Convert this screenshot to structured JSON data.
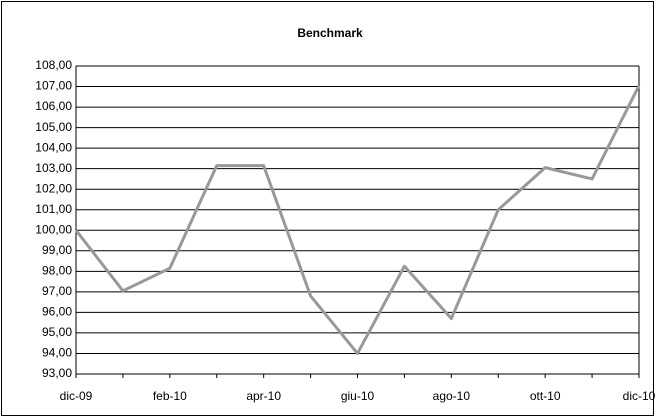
{
  "chart_data": {
    "type": "line",
    "title": "Benchmark",
    "categories": [
      "dic-09",
      null,
      "feb-10",
      null,
      "apr-10",
      null,
      "giu-10",
      null,
      "ago-10",
      null,
      "ott-10",
      null,
      "dic-10"
    ],
    "series": [
      {
        "name": "Benchmark",
        "color": "#999999",
        "values": [
          100.0,
          97.05,
          98.15,
          103.15,
          103.15,
          96.8,
          94.0,
          98.25,
          95.7,
          101.0,
          103.05,
          102.5,
          107.05
        ]
      }
    ],
    "ylim": [
      93,
      108
    ],
    "yticks": [
      {
        "value": 93,
        "label": "93,00"
      },
      {
        "value": 94,
        "label": "94,00"
      },
      {
        "value": 95,
        "label": "95,00"
      },
      {
        "value": 96,
        "label": "96,00"
      },
      {
        "value": 97,
        "label": "97,00"
      },
      {
        "value": 98,
        "label": "98,00"
      },
      {
        "value": 99,
        "label": "99,00"
      },
      {
        "value": 100,
        "label": "100,00"
      },
      {
        "value": 101,
        "label": "101,00"
      },
      {
        "value": 102,
        "label": "102,00"
      },
      {
        "value": 103,
        "label": "103,00"
      },
      {
        "value": 104,
        "label": "104,00"
      },
      {
        "value": 105,
        "label": "105,00"
      },
      {
        "value": 106,
        "label": "106,00"
      },
      {
        "value": 107,
        "label": "107,00"
      },
      {
        "value": 108,
        "label": "108,00"
      }
    ],
    "grid": true
  }
}
